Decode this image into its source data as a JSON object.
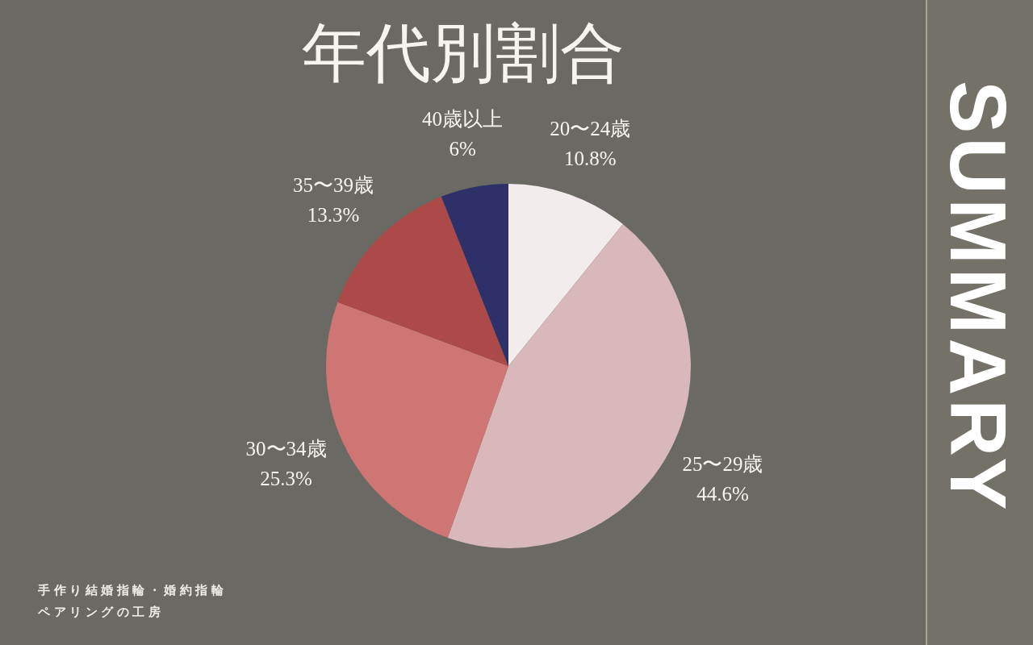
{
  "chart_data": {
    "type": "pie",
    "title": "年代別割合",
    "categories": [
      "20〜24歳",
      "25〜29歳",
      "30〜34歳",
      "35〜39歳",
      "40歳以上"
    ],
    "values": [
      10.8,
      44.6,
      25.3,
      13.3,
      6
    ],
    "colors": [
      "#f2ecec",
      "#d8b8ba",
      "#cf7574",
      "#ab4a49",
      "#2e3169"
    ],
    "value_labels": [
      "10.8%",
      "44.6%",
      "25.3%",
      "13.3%",
      "6%"
    ],
    "legend": false,
    "annotations": [
      "SUMMARY",
      "手作り結婚指輪・婚約指輪",
      "ペアリングの工房"
    ]
  }
}
